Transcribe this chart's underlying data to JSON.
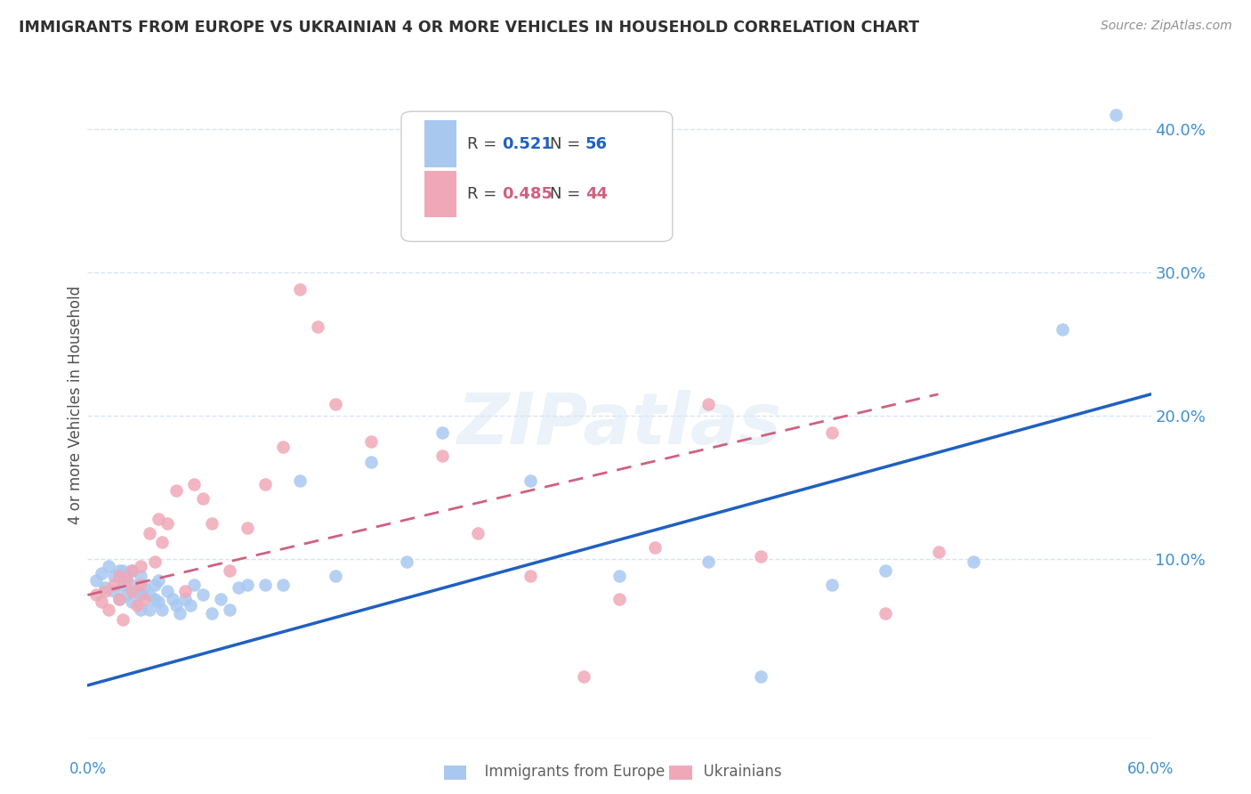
{
  "title": "IMMIGRANTS FROM EUROPE VS UKRAINIAN 4 OR MORE VEHICLES IN HOUSEHOLD CORRELATION CHART",
  "source": "Source: ZipAtlas.com",
  "ylabel": "4 or more Vehicles in Household",
  "xlim": [
    0.0,
    0.6
  ],
  "ylim": [
    -0.025,
    0.44
  ],
  "ytick_values": [
    0.0,
    0.1,
    0.2,
    0.3,
    0.4
  ],
  "ytick_labels": [
    "",
    "10.0%",
    "20.0%",
    "30.0%",
    "40.0%"
  ],
  "xtick_values": [
    0.0,
    0.6
  ],
  "xtick_labels": [
    "0.0%",
    "60.0%"
  ],
  "legend_blue_R": "0.521",
  "legend_blue_N": "56",
  "legend_pink_R": "0.485",
  "legend_pink_N": "44",
  "blue_color": "#a8c8f0",
  "pink_color": "#f0a8b8",
  "blue_line_color": "#2060c0",
  "pink_line_color": "#d06080",
  "right_tick_color": "#4090d0",
  "grid_color": "#d8e4f0",
  "title_color": "#303030",
  "source_color": "#909090",
  "ylabel_color": "#505050",
  "blue_scatter_x": [
    0.005,
    0.008,
    0.01,
    0.012,
    0.015,
    0.015,
    0.018,
    0.018,
    0.02,
    0.02,
    0.022,
    0.022,
    0.025,
    0.025,
    0.025,
    0.028,
    0.03,
    0.03,
    0.03,
    0.032,
    0.035,
    0.035,
    0.038,
    0.038,
    0.04,
    0.04,
    0.042,
    0.045,
    0.048,
    0.05,
    0.052,
    0.055,
    0.058,
    0.06,
    0.065,
    0.07,
    0.075,
    0.08,
    0.085,
    0.09,
    0.1,
    0.11,
    0.12,
    0.14,
    0.16,
    0.18,
    0.2,
    0.25,
    0.3,
    0.35,
    0.38,
    0.42,
    0.45,
    0.5,
    0.55,
    0.58
  ],
  "blue_scatter_y": [
    0.085,
    0.09,
    0.08,
    0.095,
    0.088,
    0.078,
    0.092,
    0.072,
    0.082,
    0.092,
    0.075,
    0.088,
    0.07,
    0.082,
    0.092,
    0.078,
    0.088,
    0.075,
    0.065,
    0.08,
    0.075,
    0.065,
    0.082,
    0.072,
    0.085,
    0.07,
    0.065,
    0.078,
    0.072,
    0.068,
    0.062,
    0.072,
    0.068,
    0.082,
    0.075,
    0.062,
    0.072,
    0.065,
    0.08,
    0.082,
    0.082,
    0.082,
    0.155,
    0.088,
    0.168,
    0.098,
    0.188,
    0.155,
    0.088,
    0.098,
    0.018,
    0.082,
    0.092,
    0.098,
    0.26,
    0.41
  ],
  "pink_scatter_x": [
    0.005,
    0.008,
    0.01,
    0.012,
    0.015,
    0.018,
    0.018,
    0.02,
    0.022,
    0.025,
    0.025,
    0.028,
    0.03,
    0.03,
    0.032,
    0.035,
    0.038,
    0.04,
    0.042,
    0.045,
    0.05,
    0.055,
    0.06,
    0.065,
    0.07,
    0.08,
    0.09,
    0.1,
    0.11,
    0.12,
    0.13,
    0.14,
    0.16,
    0.2,
    0.22,
    0.25,
    0.28,
    0.3,
    0.32,
    0.35,
    0.38,
    0.42,
    0.45,
    0.48
  ],
  "pink_scatter_y": [
    0.075,
    0.07,
    0.078,
    0.065,
    0.082,
    0.072,
    0.088,
    0.058,
    0.085,
    0.092,
    0.078,
    0.068,
    0.082,
    0.095,
    0.072,
    0.118,
    0.098,
    0.128,
    0.112,
    0.125,
    0.148,
    0.078,
    0.152,
    0.142,
    0.125,
    0.092,
    0.122,
    0.152,
    0.178,
    0.288,
    0.262,
    0.208,
    0.182,
    0.172,
    0.118,
    0.088,
    0.018,
    0.072,
    0.108,
    0.208,
    0.102,
    0.188,
    0.062,
    0.105
  ],
  "blue_line_x": [
    0.0,
    0.6
  ],
  "blue_line_y": [
    0.012,
    0.215
  ],
  "pink_line_x": [
    0.0,
    0.48
  ],
  "pink_line_y": [
    0.075,
    0.215
  ],
  "watermark": "ZIPatlas"
}
